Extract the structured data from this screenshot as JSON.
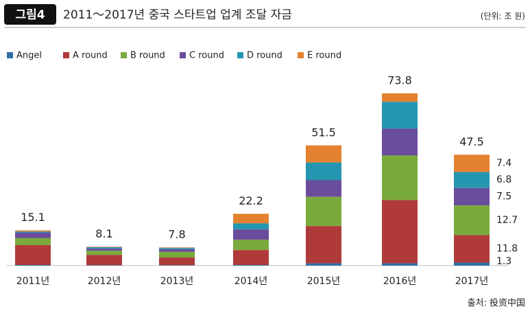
{
  "chart_data": {
    "type": "stacked_bar",
    "badge": "그림4",
    "title": "2011～2017년 중국 스타트업 업계 조달 자금",
    "unit": "(단위: 조 원)",
    "source": "출처: 投资中国",
    "categories": [
      "2011년",
      "2012년",
      "2013년",
      "2014년",
      "2015년",
      "2016년",
      "2017년"
    ],
    "totals": [
      15.1,
      8.1,
      7.8,
      22.2,
      51.5,
      73.8,
      47.5
    ],
    "series": [
      {
        "name": "Angel",
        "color": "#2e6ea6",
        "values": [
          0.3,
          0.2,
          0.2,
          0.3,
          1.0,
          1.0,
          1.3
        ],
        "value_labels": [
          null,
          null,
          null,
          null,
          null,
          null,
          "1.3"
        ]
      },
      {
        "name": "A round",
        "color": "#b03a3a",
        "values": [
          8.5,
          4.4,
          3.3,
          6.4,
          15.9,
          27.1,
          11.8
        ],
        "value_labels": [
          null,
          null,
          null,
          null,
          null,
          null,
          "11.8"
        ]
      },
      {
        "name": "B round",
        "color": "#7aaa3c",
        "values": [
          3.0,
          1.8,
          2.4,
          4.4,
          12.6,
          19.1,
          12.7
        ],
        "value_labels": [
          null,
          null,
          null,
          null,
          null,
          null,
          "12.7"
        ]
      },
      {
        "name": "C round",
        "color": "#6a4c9c",
        "values": [
          2.3,
          0.9,
          1.2,
          4.4,
          7.1,
          11.5,
          7.5
        ],
        "value_labels": [
          null,
          null,
          null,
          null,
          null,
          null,
          "7.5"
        ]
      },
      {
        "name": "D round",
        "color": "#2596b0",
        "values": [
          0.5,
          0.6,
          0.5,
          2.6,
          7.6,
          11.5,
          6.8
        ],
        "value_labels": [
          null,
          null,
          null,
          null,
          null,
          null,
          "6.8"
        ]
      },
      {
        "name": "E round",
        "color": "#e5822f",
        "values": [
          0.5,
          0.2,
          0.2,
          4.1,
          7.3,
          3.6,
          7.4
        ],
        "value_labels": [
          null,
          null,
          null,
          null,
          null,
          null,
          "7.4"
        ]
      }
    ]
  }
}
